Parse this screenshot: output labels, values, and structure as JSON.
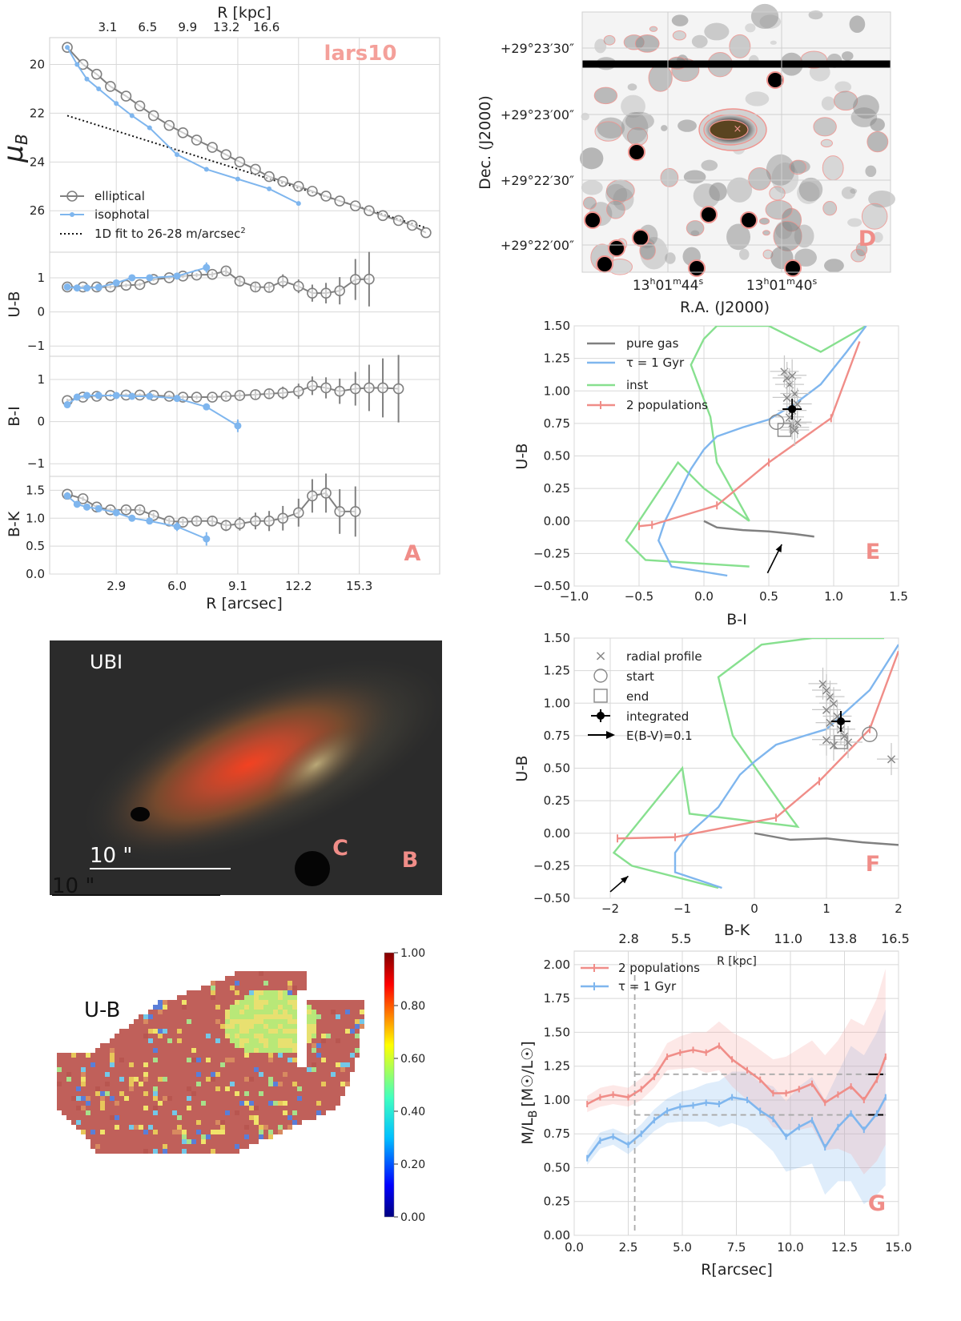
{
  "panelA": {
    "label": "A",
    "name": "lars10",
    "top_axis_label": "R [kpc]",
    "top_ticks": [
      "3.1",
      "6.5",
      "9.9",
      "13.2",
      "16.6"
    ],
    "xlabel": "R [arcsec]",
    "x_ticks": [
      "2.9",
      "6.0",
      "9.1",
      "12.2",
      "15.3"
    ],
    "legend": [
      "elliptical",
      "isophotal",
      "1D fit to 26-28 m/arcsec"
    ],
    "legend_sup": "2",
    "mu": {
      "ylabel": "μ",
      "ylabel_sub": "B",
      "ylim": [
        18.9,
        27.7
      ],
      "ticks": [
        "20",
        "22",
        "24",
        "26"
      ],
      "elliptical_x": [
        0.4,
        1.2,
        1.9,
        2.6,
        3.4,
        4.1,
        4.8,
        5.6,
        6.3,
        7.0,
        7.8,
        8.5,
        9.2,
        10.0,
        10.7,
        11.4,
        12.2,
        12.9,
        13.6,
        14.3,
        15.1,
        15.8,
        16.5,
        17.3,
        18.0,
        18.7
      ],
      "elliptical_y": [
        19.3,
        20.0,
        20.4,
        20.9,
        21.3,
        21.7,
        22.1,
        22.5,
        22.8,
        23.1,
        23.4,
        23.7,
        24.0,
        24.3,
        24.6,
        24.8,
        25.0,
        25.2,
        25.4,
        25.6,
        25.8,
        26.0,
        26.2,
        26.4,
        26.6,
        26.9
      ],
      "isophotal_x": [
        0.4,
        0.9,
        1.4,
        2.0,
        2.9,
        3.7,
        4.6,
        6.0,
        7.5,
        9.1,
        10.7,
        12.2
      ],
      "isophotal_y": [
        19.3,
        20.0,
        20.6,
        21.0,
        21.6,
        22.1,
        22.6,
        23.7,
        24.3,
        24.7,
        25.1,
        25.7
      ],
      "fit_x": [
        0.4,
        18.7
      ],
      "fit_y": [
        22.1,
        26.7
      ]
    },
    "ub": {
      "ylabel": "U-B",
      "ylim": [
        -1.3,
        1.75
      ],
      "ticks": [
        "1",
        "0",
        "−1"
      ],
      "elliptical_x": [
        0.4,
        1.2,
        1.9,
        2.6,
        3.4,
        4.1,
        4.8,
        5.6,
        6.3,
        7.0,
        7.8,
        8.5,
        9.2,
        10.0,
        10.7,
        11.4,
        12.2,
        12.9,
        13.6,
        14.3,
        15.1,
        15.8
      ],
      "elliptical_y": [
        0.73,
        0.73,
        0.73,
        0.73,
        0.78,
        0.8,
        0.95,
        1.0,
        1.05,
        1.08,
        1.1,
        1.2,
        0.9,
        0.73,
        0.72,
        0.9,
        0.75,
        0.55,
        0.55,
        0.62,
        0.95,
        0.96
      ],
      "elliptical_err": [
        0.05,
        0.05,
        0.05,
        0.05,
        0.05,
        0.05,
        0.05,
        0.05,
        0.06,
        0.06,
        0.08,
        0.1,
        0.12,
        0.15,
        0.15,
        0.2,
        0.2,
        0.25,
        0.3,
        0.4,
        0.6,
        0.8
      ],
      "isophotal_x": [
        0.4,
        0.9,
        1.4,
        2.0,
        2.9,
        3.7,
        4.6,
        6.0,
        7.5
      ],
      "isophotal_y": [
        0.73,
        0.7,
        0.7,
        0.72,
        0.85,
        1.0,
        1.0,
        1.05,
        1.3
      ],
      "isophotal_err": [
        0.03,
        0.03,
        0.03,
        0.03,
        0.04,
        0.05,
        0.06,
        0.08,
        0.15
      ]
    },
    "bi": {
      "ylabel": "B-I",
      "ylim": [
        -1.3,
        1.55
      ],
      "ticks": [
        "1",
        "0",
        "−1"
      ],
      "elliptical_x": [
        0.4,
        1.2,
        1.9,
        2.6,
        3.4,
        4.1,
        4.8,
        5.6,
        6.3,
        7.0,
        7.8,
        8.5,
        9.2,
        10.0,
        10.7,
        11.4,
        12.2,
        12.9,
        13.6,
        14.3,
        15.1,
        15.8,
        16.5,
        17.3
      ],
      "elliptical_y": [
        0.5,
        0.58,
        0.6,
        0.62,
        0.63,
        0.63,
        0.62,
        0.6,
        0.58,
        0.58,
        0.58,
        0.6,
        0.62,
        0.64,
        0.66,
        0.68,
        0.72,
        0.85,
        0.8,
        0.72,
        0.78,
        0.8,
        0.8,
        0.78
      ],
      "elliptical_err": [
        0.04,
        0.04,
        0.04,
        0.04,
        0.04,
        0.04,
        0.04,
        0.04,
        0.05,
        0.05,
        0.06,
        0.07,
        0.08,
        0.1,
        0.12,
        0.15,
        0.18,
        0.22,
        0.25,
        0.3,
        0.4,
        0.55,
        0.7,
        0.8
      ],
      "isophotal_x": [
        0.4,
        0.9,
        1.4,
        2.0,
        2.9,
        3.7,
        4.6,
        6.0,
        7.5,
        9.1
      ],
      "isophotal_y": [
        0.4,
        0.58,
        0.62,
        0.62,
        0.62,
        0.6,
        0.6,
        0.55,
        0.35,
        -0.1
      ],
      "isophotal_err": [
        0.03,
        0.03,
        0.03,
        0.03,
        0.03,
        0.04,
        0.04,
        0.05,
        0.08,
        0.15
      ]
    },
    "bk": {
      "ylabel": "B-K",
      "ylim": [
        0.0,
        1.75
      ],
      "ticks": [
        "1.5",
        "1.0",
        "0.5",
        "0.0"
      ],
      "elliptical_x": [
        0.4,
        1.2,
        1.9,
        2.6,
        3.4,
        4.1,
        4.8,
        5.6,
        6.3,
        7.0,
        7.8,
        8.5,
        9.2,
        10.0,
        10.7,
        11.4,
        12.2,
        12.9,
        13.6,
        14.3,
        15.1
      ],
      "elliptical_y": [
        1.43,
        1.35,
        1.2,
        1.15,
        1.15,
        1.15,
        1.05,
        0.95,
        0.93,
        0.95,
        0.95,
        0.87,
        0.9,
        0.95,
        0.95,
        1.0,
        1.1,
        1.4,
        1.45,
        1.12,
        1.12
      ],
      "elliptical_err": [
        0.04,
        0.04,
        0.04,
        0.04,
        0.05,
        0.05,
        0.05,
        0.05,
        0.06,
        0.07,
        0.08,
        0.1,
        0.12,
        0.15,
        0.18,
        0.22,
        0.25,
        0.3,
        0.35,
        0.4,
        0.45
      ],
      "isophotal_x": [
        0.4,
        0.9,
        1.4,
        2.0,
        2.9,
        3.7,
        4.6,
        6.0,
        7.5
      ],
      "isophotal_y": [
        1.4,
        1.25,
        1.2,
        1.17,
        1.1,
        1.0,
        0.95,
        0.85,
        0.63
      ],
      "isophotal_err": [
        0.03,
        0.03,
        0.03,
        0.03,
        0.04,
        0.04,
        0.05,
        0.08,
        0.12
      ]
    }
  },
  "panelB": {
    "label": "B",
    "band": "UBI",
    "scale": "10 \""
  },
  "panelC": {
    "label": "C",
    "band": "U-B",
    "scale": "10 \"",
    "colorbar_ticks": [
      "1.00",
      "0.80",
      "0.60",
      "0.40",
      "0.20",
      "0.00"
    ]
  },
  "panelD": {
    "label": "D",
    "ylabel": "Dec. (J2000)",
    "xlabel": "R.A. (J2000)",
    "dec_ticks": [
      "+29°23′30″",
      "+29°23′00″",
      "+29°22′30″",
      "+29°22′00″"
    ],
    "ra_ticks": [
      {
        "h": "13",
        "m": "01",
        "s": "44"
      },
      {
        "h": "13",
        "m": "01",
        "s": "40"
      }
    ]
  },
  "panelE": {
    "label": "E",
    "xlabel": "B-I",
    "ylabel": "U-B",
    "xlim": [
      -1.0,
      1.5
    ],
    "ylim": [
      -0.5,
      1.5
    ],
    "x_ticks": [
      "−1.0",
      "−0.5",
      "0.0",
      "0.5",
      "1.0",
      "1.5"
    ],
    "y_ticks": [
      "1.50",
      "1.25",
      "1.00",
      "0.75",
      "0.50",
      "0.25",
      "0.00",
      "−0.25",
      "−0.50"
    ],
    "legend": [
      "pure gas",
      "τ = 1 Gyr",
      "inst",
      "2 populations"
    ],
    "pure_gas": {
      "x": [
        0.0,
        0.1,
        0.3,
        0.5,
        0.7,
        0.85
      ],
      "y": [
        0.0,
        -0.05,
        -0.07,
        -0.08,
        -0.1,
        -0.12
      ]
    },
    "tau": {
      "x": [
        0.18,
        -0.25,
        -0.35,
        -0.3,
        -0.2,
        -0.1,
        0.0,
        0.1,
        0.3,
        0.5,
        0.7,
        0.9,
        1.1,
        1.25
      ],
      "y": [
        -0.42,
        -0.35,
        -0.15,
        0.0,
        0.2,
        0.4,
        0.55,
        0.65,
        0.72,
        0.78,
        0.9,
        1.05,
        1.3,
        1.5
      ],
      "style": "blue"
    },
    "inst": {
      "x": [
        0.35,
        -0.45,
        -0.6,
        -0.2,
        0.0,
        0.35,
        0.1,
        0.05,
        -0.1,
        0.0,
        0.1,
        0.5,
        0.9,
        1.25
      ],
      "y": [
        -0.35,
        -0.3,
        -0.15,
        0.45,
        0.25,
        0.0,
        0.45,
        0.8,
        1.2,
        1.4,
        1.5,
        1.5,
        1.3,
        1.5
      ]
    },
    "two_pop": {
      "x": [
        -0.5,
        -0.4,
        0.1,
        0.5,
        0.98,
        1.2
      ],
      "y": [
        -0.04,
        -0.03,
        0.12,
        0.45,
        0.79,
        1.38
      ]
    },
    "radial_x": [
      0.62,
      0.64,
      0.66,
      0.68,
      0.7,
      0.72,
      0.66,
      0.68,
      0.7,
      0.72,
      0.64,
      0.7,
      0.68
    ],
    "radial_y": [
      1.15,
      1.1,
      1.05,
      1.12,
      0.98,
      0.9,
      0.8,
      0.75,
      0.72,
      0.76,
      0.95,
      0.7,
      0.85
    ],
    "start": [
      0.56,
      0.76
    ],
    "end": [
      0.62,
      0.7
    ],
    "integrated": [
      0.68,
      0.86
    ],
    "arrow": {
      "x": [
        0.49,
        0.6
      ],
      "y": [
        -0.4,
        -0.18
      ]
    }
  },
  "panelF": {
    "label": "F",
    "xlabel": "B-K",
    "ylabel": "U-B",
    "xlim": [
      -2.5,
      2.0
    ],
    "ylim": [
      -0.5,
      1.5
    ],
    "x_ticks": [
      "−2",
      "−1",
      "0",
      "1",
      "2"
    ],
    "y_ticks": [
      "1.50",
      "1.25",
      "1.00",
      "0.75",
      "0.50",
      "0.25",
      "0.00",
      "−0.25",
      "−0.50"
    ],
    "legend": [
      "radial profile",
      "start",
      "end",
      "integrated",
      "E(B-V)=0.1"
    ],
    "pure_gas": {
      "x": [
        0.0,
        0.5,
        1.0,
        1.5,
        2.0
      ],
      "y": [
        0.0,
        -0.05,
        -0.04,
        -0.07,
        -0.09
      ]
    },
    "tau": {
      "x": [
        -0.45,
        -1.1,
        -1.1,
        -0.9,
        -0.5,
        -0.2,
        0.0,
        0.3,
        0.7,
        1.0,
        1.3,
        1.6,
        2.0
      ],
      "y": [
        -0.42,
        -0.3,
        -0.15,
        0.0,
        0.2,
        0.45,
        0.55,
        0.68,
        0.75,
        0.8,
        0.95,
        1.1,
        1.45
      ]
    },
    "inst": {
      "x": [
        -0.5,
        -1.7,
        -1.95,
        -1.0,
        -0.9,
        0.6,
        0.4,
        -0.3,
        -0.5,
        0.1,
        0.8,
        1.5,
        1.8
      ],
      "y": [
        -0.42,
        -0.25,
        -0.15,
        0.5,
        0.15,
        0.05,
        0.2,
        0.75,
        1.2,
        1.45,
        1.5,
        1.5,
        1.5
      ]
    },
    "two_pop": {
      "x": [
        -1.9,
        -1.1,
        0.3,
        0.9,
        1.6,
        2.0
      ],
      "y": [
        -0.04,
        -0.03,
        0.12,
        0.4,
        0.8,
        1.4
      ]
    },
    "radial_x": [
      0.95,
      1.0,
      1.05,
      1.0,
      1.1,
      1.15,
      1.2,
      1.25,
      1.3,
      1.0,
      1.05,
      1.9,
      1.1
    ],
    "radial_y": [
      1.15,
      1.1,
      1.05,
      0.95,
      1.0,
      0.9,
      0.8,
      0.75,
      0.7,
      0.72,
      0.85,
      0.57,
      0.68
    ],
    "start": [
      1.6,
      0.76
    ],
    "end": [
      1.2,
      0.7
    ],
    "integrated": [
      1.2,
      0.86
    ],
    "arrow": {
      "x": [
        -2.0,
        -1.75
      ],
      "y": [
        -0.45,
        -0.33
      ]
    }
  },
  "panelG": {
    "label": "G",
    "xlabel": "R[arcsec]",
    "ylabel": "M/L",
    "ylabel_sub": "B",
    "ylabel_unit": "[M☉/L☉]",
    "top_axis_label": "R [kpc]",
    "top_ticks": [
      "2.8",
      "5.5",
      "11.0",
      "13.8",
      "16.5"
    ],
    "xlim": [
      0.0,
      15.0
    ],
    "ylim": [
      0.0,
      2.1
    ],
    "x_ticks": [
      "0.0",
      "2.5",
      "5.0",
      "7.5",
      "10.0",
      "12.5",
      "15.0"
    ],
    "y_ticks": [
      "0.00",
      "0.25",
      "0.50",
      "0.75",
      "1.00",
      "1.25",
      "1.50",
      "1.75",
      "2.00"
    ],
    "legend": [
      "2 populations",
      "τ = 1 Gyr"
    ],
    "x": [
      0.6,
      1.2,
      1.8,
      2.5,
      3.1,
      3.7,
      4.3,
      4.9,
      5.5,
      6.1,
      6.7,
      7.3,
      8.0,
      8.6,
      9.2,
      9.8,
      10.4,
      11.0,
      11.6,
      12.2,
      12.8,
      13.4,
      14.0,
      14.4
    ],
    "two_pop": [
      0.97,
      1.02,
      1.04,
      1.02,
      1.08,
      1.17,
      1.32,
      1.35,
      1.37,
      1.35,
      1.4,
      1.3,
      1.22,
      1.15,
      1.05,
      1.05,
      1.08,
      1.12,
      0.98,
      1.04,
      1.1,
      1.0,
      1.15,
      1.32
    ],
    "tau": [
      0.57,
      0.7,
      0.73,
      0.67,
      0.75,
      0.85,
      0.92,
      0.95,
      0.96,
      0.98,
      0.97,
      1.02,
      1.0,
      0.92,
      0.86,
      0.73,
      0.8,
      0.85,
      0.65,
      0.8,
      0.9,
      0.78,
      0.9,
      1.02
    ],
    "two_pop_band": [
      0.06,
      0.07,
      0.07,
      0.07,
      0.08,
      0.08,
      0.1,
      0.12,
      0.13,
      0.15,
      0.18,
      0.2,
      0.22,
      0.22,
      0.25,
      0.27,
      0.3,
      0.32,
      0.35,
      0.4,
      0.5,
      0.55,
      0.6,
      0.65
    ],
    "tau_band": [
      0.05,
      0.06,
      0.06,
      0.07,
      0.07,
      0.08,
      0.09,
      0.11,
      0.12,
      0.14,
      0.17,
      0.19,
      0.21,
      0.21,
      0.24,
      0.26,
      0.3,
      0.32,
      0.35,
      0.4,
      0.5,
      0.55,
      0.6,
      0.65
    ],
    "hline_two_pop": 1.19,
    "hline_tau": 0.89,
    "vline": 2.8
  }
}
